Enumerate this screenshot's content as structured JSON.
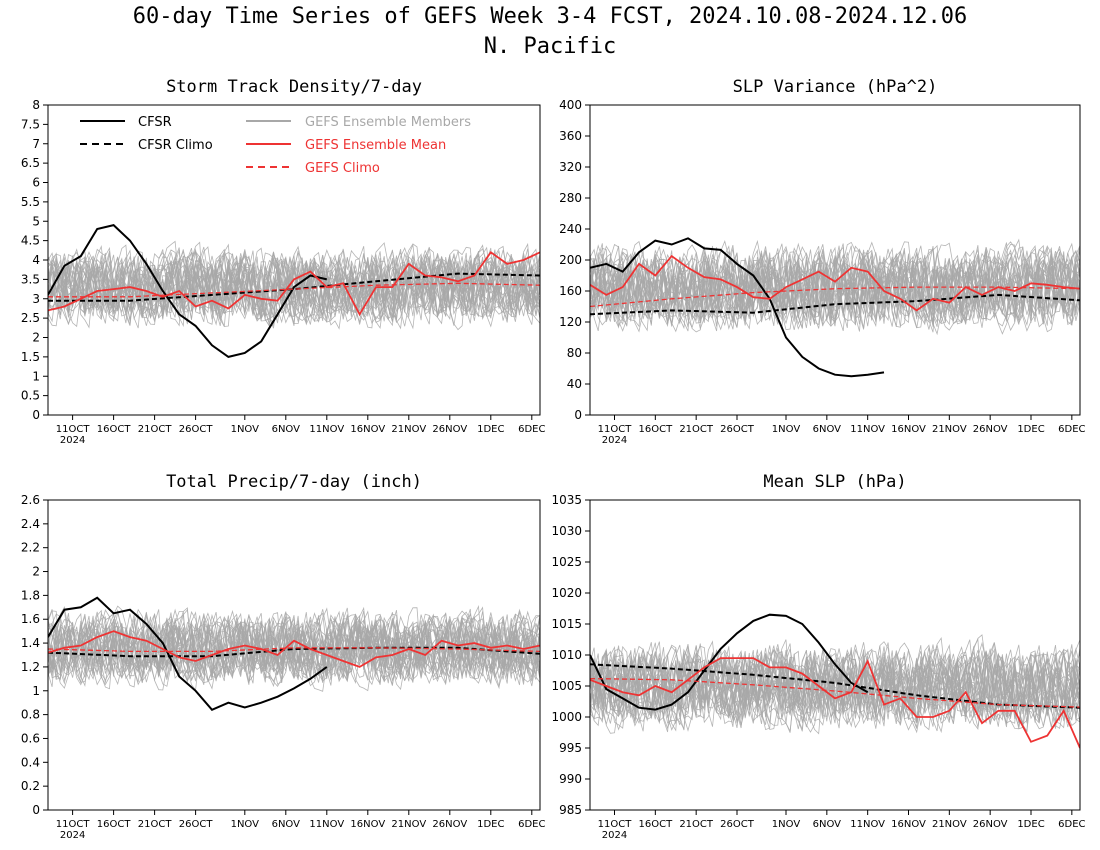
{
  "page": {
    "title": "60-day Time Series of GEFS Week 3-4 FCST, 2024.10.08-2024.12.06",
    "subtitle": "N. Pacific"
  },
  "colors": {
    "cfsr": "#000000",
    "members": "#a8a8a8",
    "ens_mean": "#ee3333",
    "gefs_climo": "#ee3333"
  },
  "legend": {
    "cfsr": "CFSR",
    "cfsr_climo": "CFSR Climo",
    "members": "GEFS Ensemble Members",
    "ens_mean": "GEFS Ensemble Mean",
    "gefs_climo": "GEFS Climo"
  },
  "x_axis": {
    "tick_days": [
      3,
      8,
      13,
      18,
      24,
      29,
      34,
      39,
      44,
      49,
      54,
      59
    ],
    "tick_labels": [
      "11OCT",
      "16OCT",
      "21OCT",
      "26OCT",
      "1NOV",
      "6NOV",
      "11NOV",
      "16NOV",
      "21NOV",
      "26NOV",
      "1DEC",
      "6DEC"
    ],
    "year_label": "2024"
  },
  "chart_data": [
    {
      "type": "line",
      "title": "Storm Track Density/7-day",
      "ylim": [
        0,
        8
      ],
      "yticks": [
        0,
        0.5,
        1,
        1.5,
        2,
        2.5,
        3,
        3.5,
        4,
        4.5,
        5,
        5.5,
        6,
        6.5,
        7,
        7.5,
        8
      ],
      "ytick_labels": [
        "0",
        "0.5",
        "1",
        "1.5",
        "2",
        "2.5",
        "3",
        "3.5",
        "4",
        "4.5",
        "5",
        "5.5",
        "6",
        "6.5",
        "7",
        "7.5",
        "8"
      ],
      "members_center": 3.3,
      "members_spread": 1.0,
      "members_seed": 11,
      "series": [
        {
          "name": "CFSR",
          "style": "solid-black",
          "x": [
            0,
            2,
            4,
            6,
            8,
            10,
            12,
            14,
            16,
            18,
            20,
            22,
            24,
            26,
            28,
            30,
            32,
            34
          ],
          "values": [
            3.1,
            3.85,
            4.1,
            4.8,
            4.9,
            4.5,
            3.9,
            3.2,
            2.6,
            2.3,
            1.8,
            1.5,
            1.6,
            1.9,
            2.6,
            3.3,
            3.6,
            3.5
          ]
        },
        {
          "name": "CFSR Climo",
          "style": "dashed-black",
          "x": [
            0,
            10,
            20,
            30,
            40,
            50,
            60
          ],
          "values": [
            2.95,
            2.95,
            3.1,
            3.25,
            3.45,
            3.65,
            3.6
          ]
        },
        {
          "name": "GEFS Ensemble Mean",
          "style": "solid-red",
          "x": [
            0,
            2,
            4,
            6,
            8,
            10,
            12,
            14,
            16,
            18,
            20,
            22,
            24,
            26,
            28,
            30,
            32,
            34,
            36,
            38,
            40,
            42,
            44,
            46,
            48,
            50,
            52,
            54,
            56,
            58,
            60
          ],
          "values": [
            2.7,
            2.8,
            3.0,
            3.2,
            3.25,
            3.3,
            3.2,
            3.05,
            3.2,
            2.8,
            2.95,
            2.75,
            3.1,
            3.0,
            2.95,
            3.5,
            3.7,
            3.3,
            3.4,
            2.6,
            3.3,
            3.3,
            3.9,
            3.6,
            3.55,
            3.45,
            3.6,
            4.2,
            3.9,
            4.0,
            4.2
          ]
        },
        {
          "name": "GEFS Climo",
          "style": "dashed-red",
          "x": [
            0,
            10,
            20,
            30,
            40,
            50,
            60
          ],
          "values": [
            3.05,
            3.05,
            3.15,
            3.25,
            3.35,
            3.4,
            3.35
          ]
        }
      ]
    },
    {
      "type": "line",
      "title": "SLP Variance (hPa^2)",
      "ylim": [
        0,
        400
      ],
      "yticks": [
        0,
        40,
        80,
        120,
        160,
        200,
        240,
        280,
        320,
        360,
        400
      ],
      "ytick_labels": [
        "0",
        "40",
        "80",
        "120",
        "160",
        "200",
        "240",
        "280",
        "320",
        "360",
        "400"
      ],
      "members_center": 165,
      "members_spread": 55,
      "members_seed": 23,
      "series": [
        {
          "name": "CFSR",
          "style": "solid-black",
          "x": [
            0,
            2,
            4,
            6,
            8,
            10,
            12,
            14,
            16,
            18,
            20,
            22,
            24,
            26,
            28,
            30,
            32,
            34,
            36
          ],
          "values": [
            190,
            195,
            185,
            210,
            225,
            220,
            228,
            215,
            213,
            195,
            180,
            150,
            100,
            75,
            60,
            52,
            50,
            52,
            55
          ]
        },
        {
          "name": "CFSR Climo",
          "style": "dashed-black",
          "x": [
            0,
            10,
            20,
            30,
            40,
            50,
            60
          ],
          "values": [
            130,
            135,
            132,
            143,
            147,
            155,
            148
          ]
        },
        {
          "name": "GEFS Ensemble Mean",
          "style": "solid-red",
          "x": [
            0,
            2,
            4,
            6,
            8,
            10,
            12,
            14,
            16,
            18,
            20,
            22,
            24,
            26,
            28,
            30,
            32,
            34,
            36,
            38,
            40,
            42,
            44,
            46,
            48,
            50,
            52,
            54,
            56,
            58,
            60
          ],
          "values": [
            168,
            155,
            165,
            195,
            180,
            205,
            190,
            178,
            175,
            165,
            152,
            150,
            165,
            175,
            185,
            172,
            190,
            185,
            160,
            150,
            135,
            150,
            145,
            165,
            155,
            165,
            160,
            170,
            168,
            165,
            163
          ]
        },
        {
          "name": "GEFS Climo",
          "style": "dashed-red",
          "x": [
            0,
            10,
            20,
            30,
            40,
            50,
            60
          ],
          "values": [
            140,
            150,
            158,
            163,
            165,
            165,
            163
          ]
        }
      ]
    },
    {
      "type": "line",
      "title": "Total Precip/7-day (inch)",
      "ylim": [
        0,
        2.6
      ],
      "yticks": [
        0,
        0.2,
        0.4,
        0.6,
        0.8,
        1,
        1.2,
        1.4,
        1.6,
        1.8,
        2,
        2.2,
        2.4,
        2.6
      ],
      "ytick_labels": [
        "0",
        "0.2",
        "0.4",
        "0.6",
        "0.8",
        "1",
        "1.2",
        "1.4",
        "1.6",
        "1.8",
        "2",
        "2.2",
        "2.4",
        "2.6"
      ],
      "members_center": 1.36,
      "members_spread": 0.32,
      "members_seed": 37,
      "series": [
        {
          "name": "CFSR",
          "style": "solid-black",
          "x": [
            0,
            2,
            4,
            6,
            8,
            10,
            12,
            14,
            16,
            18,
            20,
            22,
            24,
            26,
            28,
            30,
            32,
            34
          ],
          "values": [
            1.45,
            1.68,
            1.7,
            1.78,
            1.65,
            1.68,
            1.56,
            1.4,
            1.12,
            1.0,
            0.84,
            0.9,
            0.86,
            0.9,
            0.95,
            1.02,
            1.1,
            1.2
          ]
        },
        {
          "name": "CFSR Climo",
          "style": "dashed-black",
          "x": [
            0,
            10,
            20,
            30,
            40,
            50,
            60
          ],
          "values": [
            1.32,
            1.29,
            1.29,
            1.35,
            1.36,
            1.36,
            1.31
          ]
        },
        {
          "name": "GEFS Ensemble Mean",
          "style": "solid-red",
          "x": [
            0,
            2,
            4,
            6,
            8,
            10,
            12,
            14,
            16,
            18,
            20,
            22,
            24,
            26,
            28,
            30,
            32,
            34,
            36,
            38,
            40,
            42,
            44,
            46,
            48,
            50,
            52,
            54,
            56,
            58,
            60
          ],
          "values": [
            1.32,
            1.36,
            1.38,
            1.45,
            1.5,
            1.45,
            1.42,
            1.35,
            1.28,
            1.25,
            1.3,
            1.35,
            1.38,
            1.35,
            1.3,
            1.42,
            1.35,
            1.3,
            1.25,
            1.2,
            1.28,
            1.3,
            1.35,
            1.3,
            1.42,
            1.38,
            1.4,
            1.36,
            1.38,
            1.35,
            1.38
          ]
        },
        {
          "name": "GEFS Climo",
          "style": "dashed-red",
          "x": [
            0,
            10,
            20,
            30,
            40,
            50,
            60
          ],
          "values": [
            1.35,
            1.33,
            1.33,
            1.36,
            1.36,
            1.35,
            1.33
          ]
        }
      ]
    },
    {
      "type": "line",
      "title": "Mean SLP (hPa)",
      "ylim": [
        985,
        1035
      ],
      "yticks": [
        985,
        990,
        995,
        1000,
        1005,
        1010,
        1015,
        1020,
        1025,
        1030,
        1035
      ],
      "ytick_labels": [
        "985",
        "990",
        "995",
        "1000",
        "1005",
        "1010",
        "1015",
        "1020",
        "1025",
        "1030",
        "1035"
      ],
      "members_center": 1005,
      "members_spread": 7,
      "members_seed": 53,
      "series": [
        {
          "name": "CFSR",
          "style": "solid-black",
          "x": [
            0,
            2,
            4,
            6,
            8,
            10,
            12,
            14,
            16,
            18,
            20,
            22,
            24,
            26,
            28,
            30,
            32,
            34
          ],
          "values": [
            1010,
            1004.5,
            1003,
            1001.5,
            1001.2,
            1002,
            1004,
            1007.5,
            1011,
            1013.5,
            1015.5,
            1016.5,
            1016.3,
            1015,
            1012,
            1008.5,
            1005.5,
            1004
          ]
        },
        {
          "name": "CFSR Climo",
          "style": "dashed-black",
          "x": [
            0,
            10,
            20,
            30,
            40,
            50,
            60
          ],
          "values": [
            1008.5,
            1007.8,
            1006.8,
            1005.5,
            1003.5,
            1002,
            1001.5
          ]
        },
        {
          "name": "GEFS Ensemble Mean",
          "style": "solid-red",
          "x": [
            0,
            2,
            4,
            6,
            8,
            10,
            12,
            14,
            16,
            18,
            20,
            22,
            24,
            26,
            28,
            30,
            32,
            34,
            36,
            38,
            40,
            42,
            44,
            46,
            48,
            50,
            52,
            54,
            56,
            58,
            60
          ],
          "values": [
            1006,
            1005,
            1004,
            1003.5,
            1005,
            1004,
            1006,
            1008,
            1009.5,
            1009.5,
            1009.5,
            1008,
            1008,
            1007,
            1005,
            1003,
            1004,
            1009,
            1002,
            1003,
            1000,
            1000,
            1001,
            1004,
            999,
            1001,
            1001,
            996,
            997,
            1001,
            995
          ]
        },
        {
          "name": "GEFS Climo",
          "style": "dashed-red",
          "x": [
            0,
            10,
            20,
            30,
            40,
            50,
            60
          ],
          "values": [
            1006.2,
            1006,
            1005.2,
            1004.2,
            1003,
            1002,
            1001.6
          ]
        }
      ]
    }
  ]
}
